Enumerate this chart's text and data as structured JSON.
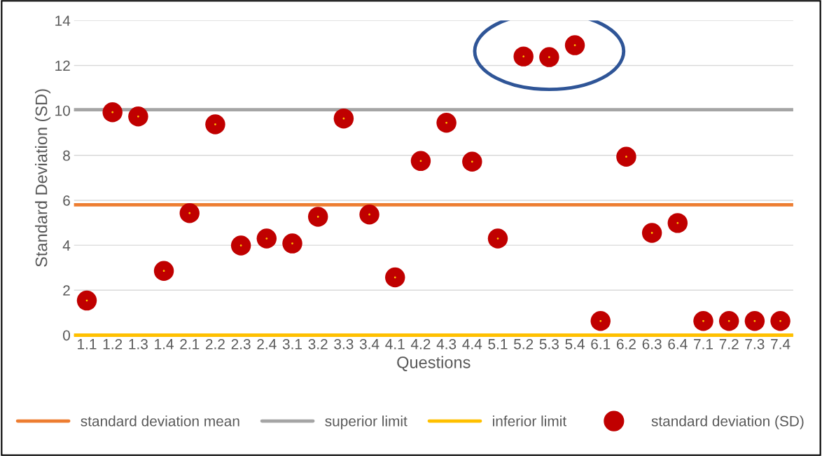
{
  "chart_data": {
    "type": "scatter",
    "xlabel": "Questions",
    "ylabel": "Standard Deviation (SD)",
    "categories": [
      "1.1",
      "1.2",
      "1.3",
      "1.4",
      "2.1",
      "2.2",
      "2.3",
      "2.4",
      "3.1",
      "3.2",
      "3.3",
      "3.4",
      "4.1",
      "4.2",
      "4.3",
      "4.4",
      "5.1",
      "5.2",
      "5.3",
      "5.4",
      "6.1",
      "6.2",
      "6.3",
      "6.4",
      "7.1",
      "7.2",
      "7.3",
      "7.4"
    ],
    "series": [
      {
        "name": "standard deviation (SD)",
        "color": "#c00000",
        "values": [
          1.54,
          9.92,
          9.73,
          2.86,
          5.43,
          9.38,
          3.99,
          4.3,
          4.08,
          5.27,
          9.64,
          5.37,
          2.57,
          7.75,
          9.45,
          7.72,
          4.3,
          12.4,
          12.37,
          12.9,
          0.63,
          7.94,
          4.55,
          4.99,
          0.63,
          0.63,
          0.63,
          0.63
        ]
      }
    ],
    "ref_lines": [
      {
        "axis": "y",
        "value": 5.8,
        "label": "standard deviation mean",
        "color": "#ed7d31"
      },
      {
        "axis": "y",
        "value": 10.03,
        "label": "superior limit",
        "color": "#a5a5a5"
      },
      {
        "axis": "y",
        "value": 0,
        "label": "inferior limit",
        "color": "#ffc000"
      }
    ],
    "ylim": [
      0,
      14
    ],
    "yticks": [
      0,
      2,
      4,
      6,
      8,
      10,
      12,
      14
    ],
    "grid": "y",
    "legend": "bottom",
    "marker": "circle"
  }
}
